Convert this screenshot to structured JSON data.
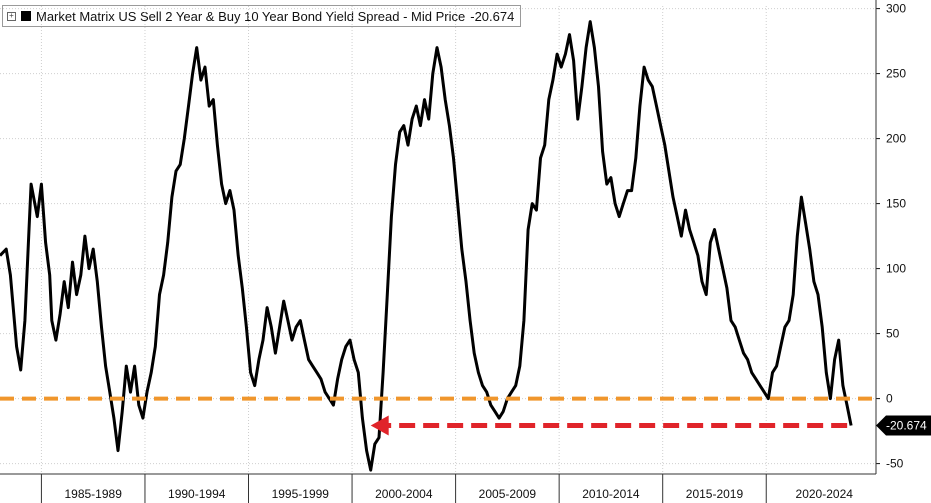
{
  "chart_data": {
    "type": "line",
    "title": "Market Matrix US Sell 2 Year & Buy 10 Year Bond Yield Spread - Mid Price",
    "last_value": "-20.674",
    "ylim": [
      -58,
      302
    ],
    "y_ticks": [
      "300",
      "250",
      "200",
      "150",
      "100",
      "50",
      "0",
      "-50"
    ],
    "x_range": [
      1982.5,
      2024.8
    ],
    "x_ticks": [
      "1985-1989",
      "1990-1994",
      "1995-1999",
      "2000-2004",
      "2005-2009",
      "2010-2014",
      "2015-2019",
      "2020-2024"
    ],
    "grid": true,
    "series": [
      {
        "name": "Market Matrix US Sell 2 Year & Buy 10 Year Bond Yield Spread - Mid Price",
        "color": "#000000",
        "points": [
          [
            1982.5,
            110
          ],
          [
            1982.8,
            115
          ],
          [
            1983.0,
            95
          ],
          [
            1983.3,
            40
          ],
          [
            1983.5,
            22
          ],
          [
            1983.7,
            60
          ],
          [
            1983.9,
            130
          ],
          [
            1984.0,
            165
          ],
          [
            1984.3,
            140
          ],
          [
            1984.5,
            165
          ],
          [
            1984.7,
            120
          ],
          [
            1984.9,
            95
          ],
          [
            1985.0,
            60
          ],
          [
            1985.2,
            45
          ],
          [
            1985.4,
            65
          ],
          [
            1985.6,
            90
          ],
          [
            1985.8,
            70
          ],
          [
            1986.0,
            105
          ],
          [
            1986.2,
            80
          ],
          [
            1986.4,
            95
          ],
          [
            1986.6,
            125
          ],
          [
            1986.8,
            100
          ],
          [
            1987.0,
            115
          ],
          [
            1987.2,
            90
          ],
          [
            1987.4,
            55
          ],
          [
            1987.6,
            25
          ],
          [
            1987.8,
            5
          ],
          [
            1988.0,
            -15
          ],
          [
            1988.2,
            -40
          ],
          [
            1988.4,
            -10
          ],
          [
            1988.6,
            25
          ],
          [
            1988.8,
            5
          ],
          [
            1989.0,
            25
          ],
          [
            1989.2,
            -5
          ],
          [
            1989.4,
            -15
          ],
          [
            1989.6,
            5
          ],
          [
            1989.8,
            20
          ],
          [
            1990.0,
            40
          ],
          [
            1990.2,
            80
          ],
          [
            1990.4,
            95
          ],
          [
            1990.6,
            120
          ],
          [
            1990.8,
            155
          ],
          [
            1991.0,
            175
          ],
          [
            1991.2,
            180
          ],
          [
            1991.4,
            200
          ],
          [
            1991.6,
            225
          ],
          [
            1991.8,
            250
          ],
          [
            1992.0,
            270
          ],
          [
            1992.2,
            245
          ],
          [
            1992.4,
            255
          ],
          [
            1992.6,
            225
          ],
          [
            1992.8,
            230
          ],
          [
            1993.0,
            195
          ],
          [
            1993.2,
            165
          ],
          [
            1993.4,
            150
          ],
          [
            1993.6,
            160
          ],
          [
            1993.8,
            145
          ],
          [
            1994.0,
            110
          ],
          [
            1994.2,
            85
          ],
          [
            1994.4,
            55
          ],
          [
            1994.6,
            20
          ],
          [
            1994.8,
            10
          ],
          [
            1995.0,
            30
          ],
          [
            1995.2,
            45
          ],
          [
            1995.4,
            70
          ],
          [
            1995.6,
            55
          ],
          [
            1995.8,
            35
          ],
          [
            1996.0,
            55
          ],
          [
            1996.2,
            75
          ],
          [
            1996.4,
            60
          ],
          [
            1996.6,
            45
          ],
          [
            1996.8,
            55
          ],
          [
            1997.0,
            60
          ],
          [
            1997.2,
            45
          ],
          [
            1997.4,
            30
          ],
          [
            1997.6,
            25
          ],
          [
            1997.8,
            20
          ],
          [
            1998.0,
            15
          ],
          [
            1998.2,
            5
          ],
          [
            1998.4,
            0
          ],
          [
            1998.6,
            -5
          ],
          [
            1998.8,
            15
          ],
          [
            1999.0,
            30
          ],
          [
            1999.2,
            40
          ],
          [
            1999.4,
            45
          ],
          [
            1999.6,
            30
          ],
          [
            1999.8,
            20
          ],
          [
            2000.0,
            -15
          ],
          [
            2000.2,
            -40
          ],
          [
            2000.4,
            -55
          ],
          [
            2000.6,
            -35
          ],
          [
            2000.8,
            -30
          ],
          [
            2001.0,
            20
          ],
          [
            2001.2,
            80
          ],
          [
            2001.4,
            140
          ],
          [
            2001.6,
            180
          ],
          [
            2001.8,
            205
          ],
          [
            2002.0,
            210
          ],
          [
            2002.2,
            195
          ],
          [
            2002.4,
            215
          ],
          [
            2002.6,
            225
          ],
          [
            2002.8,
            210
          ],
          [
            2003.0,
            230
          ],
          [
            2003.2,
            215
          ],
          [
            2003.4,
            250
          ],
          [
            2003.6,
            270
          ],
          [
            2003.8,
            255
          ],
          [
            2004.0,
            230
          ],
          [
            2004.2,
            210
          ],
          [
            2004.4,
            185
          ],
          [
            2004.6,
            150
          ],
          [
            2004.8,
            115
          ],
          [
            2005.0,
            90
          ],
          [
            2005.2,
            60
          ],
          [
            2005.4,
            35
          ],
          [
            2005.6,
            20
          ],
          [
            2005.8,
            10
          ],
          [
            2006.0,
            5
          ],
          [
            2006.2,
            -5
          ],
          [
            2006.4,
            -10
          ],
          [
            2006.6,
            -15
          ],
          [
            2006.8,
            -10
          ],
          [
            2007.0,
            0
          ],
          [
            2007.2,
            5
          ],
          [
            2007.4,
            10
          ],
          [
            2007.6,
            25
          ],
          [
            2007.8,
            60
          ],
          [
            2008.0,
            130
          ],
          [
            2008.2,
            150
          ],
          [
            2008.4,
            145
          ],
          [
            2008.6,
            185
          ],
          [
            2008.8,
            195
          ],
          [
            2009.0,
            230
          ],
          [
            2009.2,
            245
          ],
          [
            2009.4,
            265
          ],
          [
            2009.6,
            255
          ],
          [
            2009.8,
            265
          ],
          [
            2010.0,
            280
          ],
          [
            2010.2,
            260
          ],
          [
            2010.4,
            215
          ],
          [
            2010.6,
            240
          ],
          [
            2010.8,
            270
          ],
          [
            2011.0,
            290
          ],
          [
            2011.2,
            270
          ],
          [
            2011.4,
            240
          ],
          [
            2011.6,
            190
          ],
          [
            2011.8,
            165
          ],
          [
            2012.0,
            170
          ],
          [
            2012.2,
            150
          ],
          [
            2012.4,
            140
          ],
          [
            2012.6,
            150
          ],
          [
            2012.8,
            160
          ],
          [
            2013.0,
            160
          ],
          [
            2013.2,
            185
          ],
          [
            2013.4,
            225
          ],
          [
            2013.6,
            255
          ],
          [
            2013.8,
            245
          ],
          [
            2014.0,
            240
          ],
          [
            2014.2,
            225
          ],
          [
            2014.4,
            210
          ],
          [
            2014.6,
            195
          ],
          [
            2014.8,
            175
          ],
          [
            2015.0,
            155
          ],
          [
            2015.2,
            140
          ],
          [
            2015.4,
            125
          ],
          [
            2015.6,
            145
          ],
          [
            2015.8,
            130
          ],
          [
            2016.0,
            120
          ],
          [
            2016.2,
            110
          ],
          [
            2016.4,
            90
          ],
          [
            2016.6,
            80
          ],
          [
            2016.8,
            120
          ],
          [
            2017.0,
            130
          ],
          [
            2017.2,
            115
          ],
          [
            2017.4,
            100
          ],
          [
            2017.6,
            85
          ],
          [
            2017.8,
            60
          ],
          [
            2018.0,
            55
          ],
          [
            2018.2,
            45
          ],
          [
            2018.4,
            35
          ],
          [
            2018.6,
            30
          ],
          [
            2018.8,
            20
          ],
          [
            2019.0,
            15
          ],
          [
            2019.2,
            10
          ],
          [
            2019.4,
            5
          ],
          [
            2019.6,
            0
          ],
          [
            2019.8,
            20
          ],
          [
            2020.0,
            25
          ],
          [
            2020.2,
            40
          ],
          [
            2020.4,
            55
          ],
          [
            2020.6,
            60
          ],
          [
            2020.8,
            80
          ],
          [
            2021.0,
            125
          ],
          [
            2021.2,
            155
          ],
          [
            2021.4,
            135
          ],
          [
            2021.6,
            115
          ],
          [
            2021.8,
            90
          ],
          [
            2022.0,
            80
          ],
          [
            2022.2,
            55
          ],
          [
            2022.4,
            20
          ],
          [
            2022.6,
            0
          ],
          [
            2022.8,
            30
          ],
          [
            2023.0,
            45
          ],
          [
            2023.2,
            10
          ],
          [
            2023.4,
            -5
          ],
          [
            2023.6,
            -20.674
          ]
        ]
      }
    ],
    "reference_lines": [
      {
        "kind": "horizontal",
        "y": 0,
        "color": "#f0962c",
        "style": "dashed"
      },
      {
        "kind": "arrow",
        "y": -20.674,
        "x_from": 2023.6,
        "x_to": 2000.4,
        "color": "#e0242a",
        "style": "dashed"
      }
    ]
  }
}
